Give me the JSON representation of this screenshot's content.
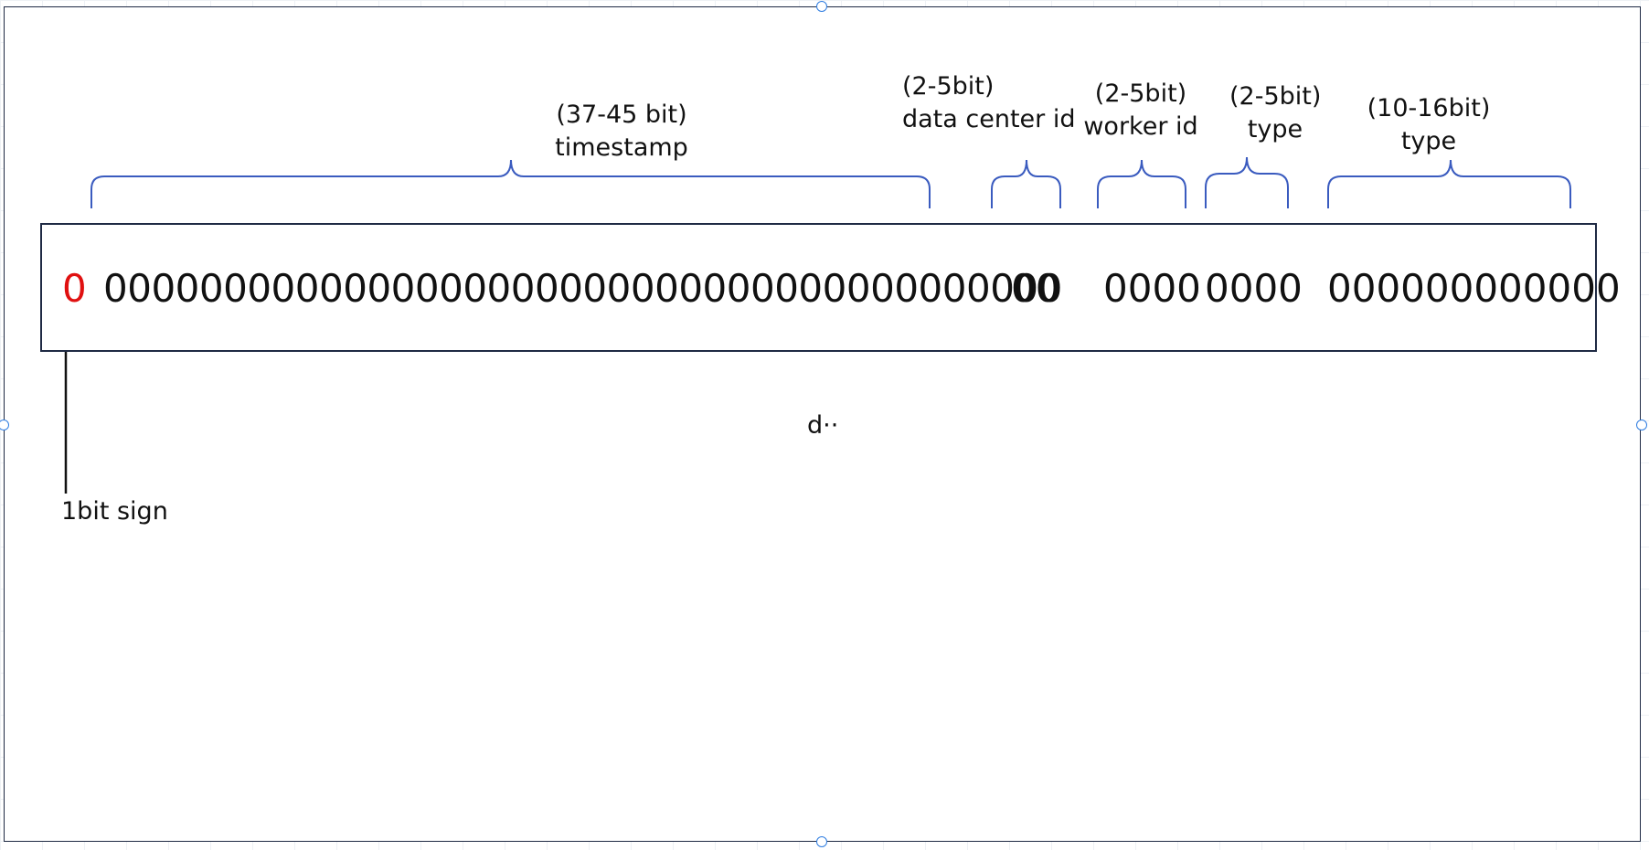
{
  "sign_bit": "0",
  "sign_label": "1bit sign",
  "segments": [
    {
      "bits": "0000000000000000000000000000000000000000",
      "range": "(37-45 bit)",
      "name": "timestamp"
    },
    {
      "bits": "00",
      "range": "(2-5bit)",
      "name": "data center id"
    },
    {
      "bits": "0000",
      "range": "(2-5bit)",
      "name": "worker id"
    },
    {
      "bits": "0000",
      "range": "(2-5bit)",
      "name": "type"
    },
    {
      "bits": "000000000000",
      "range": "(10-16bit)",
      "name": "type"
    }
  ],
  "stray_text": "d··",
  "colors": {
    "sign": "#e01010",
    "brace": "#3a5bbf",
    "handle": "#2f7de1",
    "border": "#1f2a44"
  }
}
